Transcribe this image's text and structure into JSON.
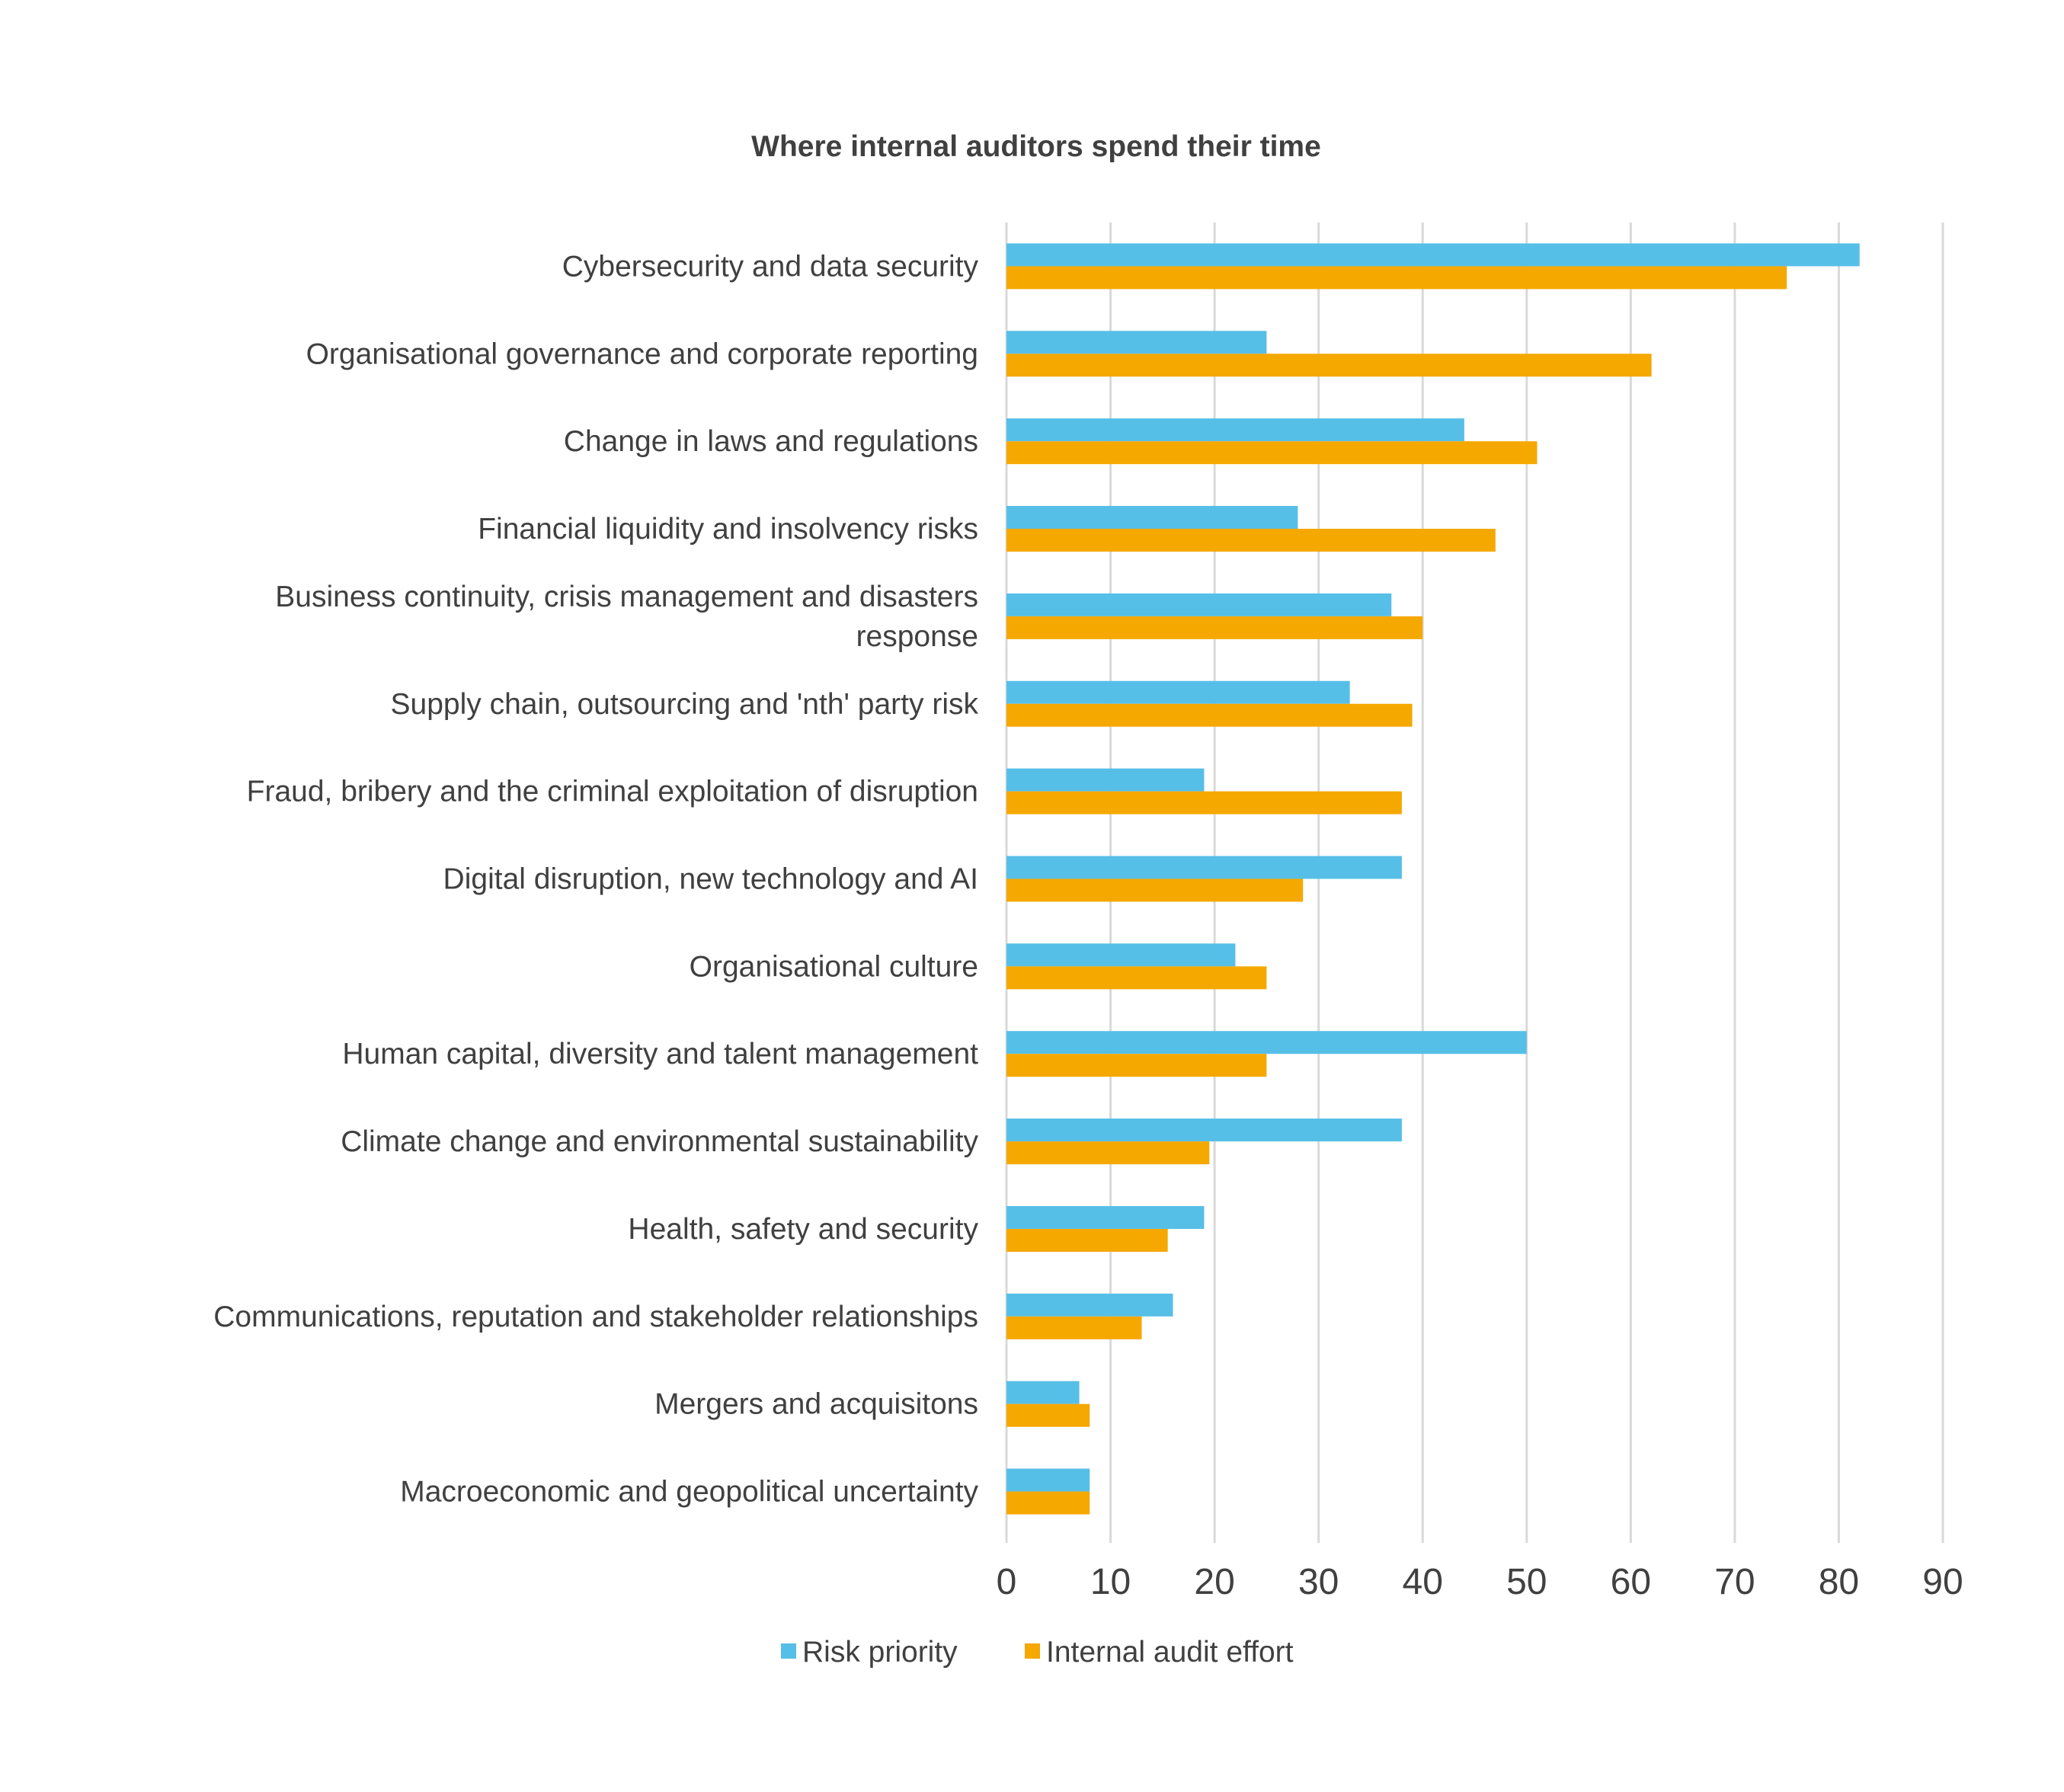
{
  "chart_data": {
    "type": "bar",
    "orientation": "horizontal",
    "title": "Where internal auditors spend their time",
    "xlabel": "",
    "ylabel": "",
    "xlim": [
      0,
      90
    ],
    "xticks": [
      0,
      10,
      20,
      30,
      40,
      50,
      60,
      70,
      80,
      90
    ],
    "grid": true,
    "legend_position": "bottom",
    "categories": [
      [
        "Cybersecurity and data security"
      ],
      [
        "Organisational governance and corporate reporting"
      ],
      [
        "Change in laws and regulations"
      ],
      [
        "Financial liquidity and insolvency risks"
      ],
      [
        "Business continuity, crisis management and disasters",
        "response"
      ],
      [
        "Supply chain, outsourcing and 'nth' party risk"
      ],
      [
        "Fraud, bribery and the criminal exploitation of disruption"
      ],
      [
        "Digital disruption, new technology and AI"
      ],
      [
        "Organisational culture"
      ],
      [
        "Human capital, diversity and talent management"
      ],
      [
        "Climate change and environmental sustainability"
      ],
      [
        "Health, safety and security"
      ],
      [
        "Communications, reputation and stakeholder relationships"
      ],
      [
        "Mergers and acquisitons"
      ],
      [
        "Macroeconomic and geopolitical uncertainty"
      ]
    ],
    "series": [
      {
        "name": "Risk priority",
        "color": "#56BFE7",
        "values": [
          82,
          25,
          44,
          28,
          37,
          33,
          19,
          38,
          22,
          50,
          38,
          19,
          16,
          7,
          8
        ]
      },
      {
        "name": "Internal audit effort",
        "color": "#F5A800",
        "values": [
          75,
          62,
          51,
          47,
          40,
          39,
          38,
          28.5,
          25,
          25,
          19.5,
          15.5,
          13,
          8,
          8
        ]
      }
    ]
  }
}
